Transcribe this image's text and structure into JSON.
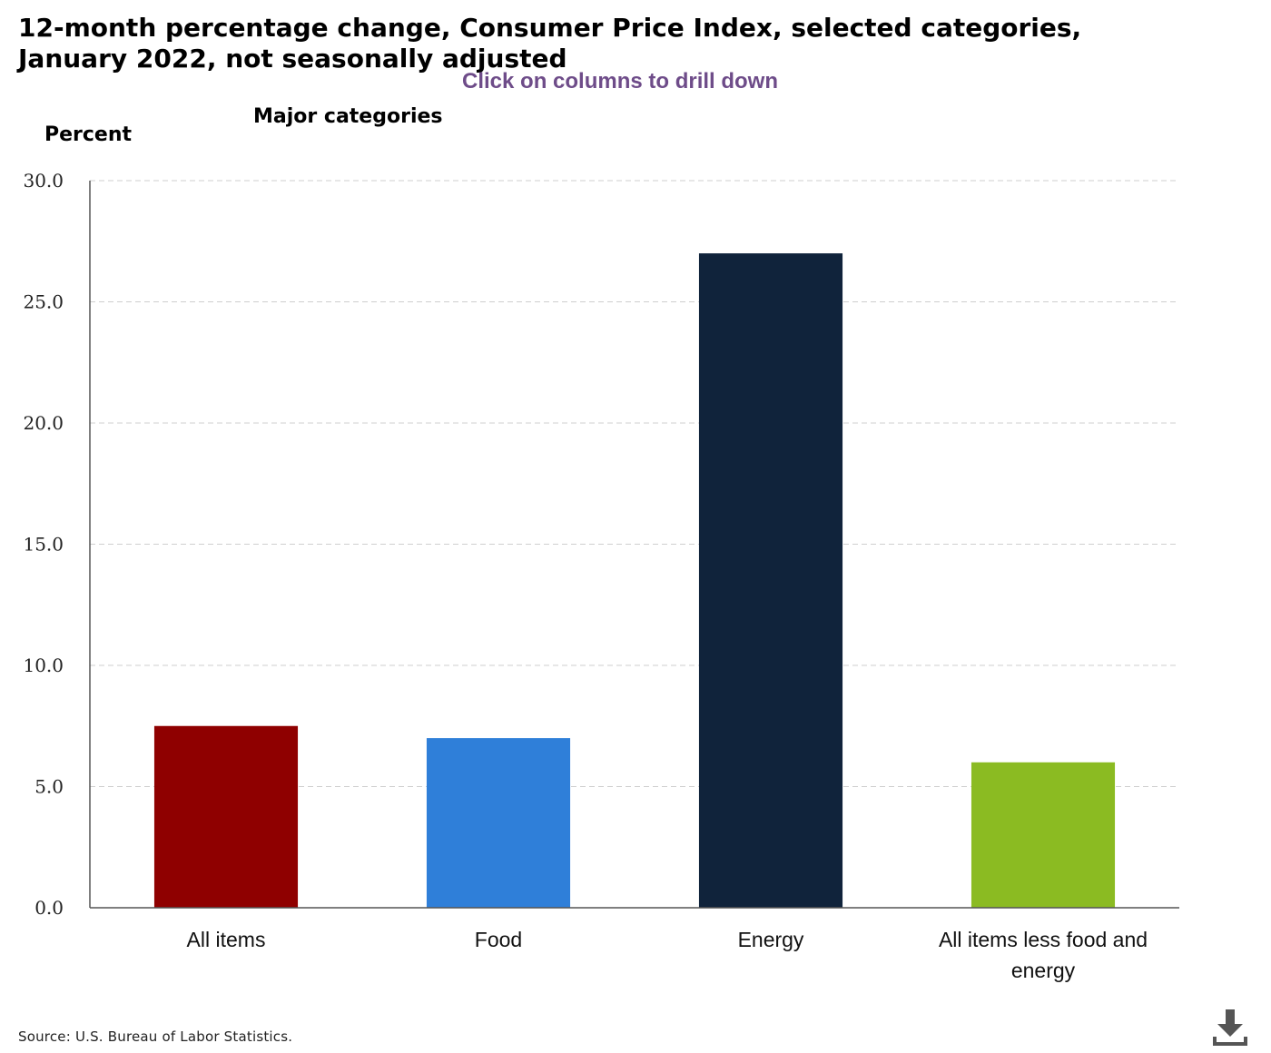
{
  "chart_data": {
    "type": "bar",
    "title": "12-month percentage change, Consumer Price Index, selected categories, January 2022, not seasonally adjusted",
    "subtitle": "Major categories",
    "drilldown_hint": "Click on columns to drill down",
    "ylabel": "Percent",
    "xlabel": "",
    "categories": [
      "All items",
      "Food",
      "Energy",
      "All items less food and energy"
    ],
    "values": [
      7.5,
      7.0,
      27.0,
      6.0
    ],
    "colors": [
      "#8f0000",
      "#2f7fd9",
      "#10233b",
      "#8bbb22"
    ],
    "ylim": [
      0,
      30
    ],
    "yticks": [
      "0.0",
      "5.0",
      "10.0",
      "15.0",
      "20.0",
      "25.0",
      "30.0"
    ],
    "grid": true,
    "legend": "none"
  },
  "source": "Source: U.S. Bureau of Labor Statistics.",
  "icons": {
    "download": "download-icon"
  }
}
